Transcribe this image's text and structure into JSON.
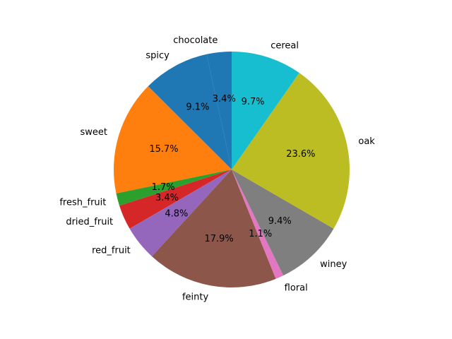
{
  "chart_data": {
    "type": "pie",
    "start_angle_deg": 90,
    "direction": "counterclockwise",
    "slices": [
      {
        "label": "chocolate",
        "value": 3.4,
        "pct_text": "3.4%",
        "color": "#1f77b4"
      },
      {
        "label": "spicy",
        "value": 9.1,
        "pct_text": "9.1%",
        "color": "#1f77b4"
      },
      {
        "label": "sweet",
        "value": 15.7,
        "pct_text": "15.7%",
        "color": "#ff7f0e"
      },
      {
        "label": "fresh_fruit",
        "value": 1.7,
        "pct_text": "1.7%",
        "color": "#2ca02c"
      },
      {
        "label": "dried_fruit",
        "value": 3.4,
        "pct_text": "3.4%",
        "color": "#d62728"
      },
      {
        "label": "red_fruit",
        "value": 4.8,
        "pct_text": "4.8%",
        "color": "#9467bd"
      },
      {
        "label": "feinty",
        "value": 17.9,
        "pct_text": "17.9%",
        "color": "#8c564b"
      },
      {
        "label": "floral",
        "value": 1.1,
        "pct_text": "1.1%",
        "color": "#e377c2"
      },
      {
        "label": "winey",
        "value": 9.4,
        "pct_text": "9.4%",
        "color": "#7f7f7f"
      },
      {
        "label": "oak",
        "value": 23.6,
        "pct_text": "23.6%",
        "color": "#bcbd22"
      },
      {
        "label": "cereal",
        "value": 9.7,
        "pct_text": "9.7%",
        "color": "#17becf"
      }
    ]
  }
}
